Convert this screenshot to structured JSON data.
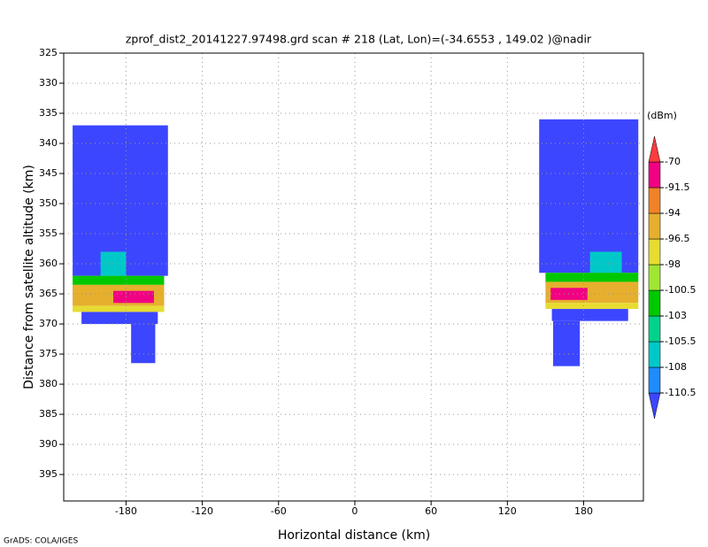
{
  "chart_data": {
    "type": "heatmap",
    "title": "zprof_dist2_20141227.97498.grd  scan # 218  (Lat, Lon)=(-34.6553 , 149.02 )@nadir",
    "x_label": "Horizontal distance (km)",
    "y_label": "Distance from satellite altitude (km)",
    "footer": "GrADS: COLA/IGES",
    "xlim": [
      -229,
      227
    ],
    "ylim": [
      399.4,
      325
    ],
    "xticks": [
      -180,
      -120,
      -60,
      0,
      60,
      120,
      180
    ],
    "yticks": [
      325,
      330,
      335,
      340,
      345,
      350,
      355,
      360,
      365,
      370,
      375,
      380,
      385,
      390,
      395
    ],
    "grid": true,
    "colorbar": {
      "unit": "(dBm)",
      "levels": [
        -110.5,
        -108,
        -105.5,
        -103,
        -100.5,
        -98,
        -96.5,
        -94,
        -91.5,
        -70
      ],
      "colors": [
        "#3c46ff",
        "#1e8cff",
        "#00c8c8",
        "#00d28c",
        "#00c800",
        "#a0e632",
        "#e6dc32",
        "#e6af2d",
        "#f08228",
        "#f00082",
        "#fa3c3c"
      ]
    },
    "cells": [
      {
        "x": [
          -222,
          -147
        ],
        "y": [
          337,
          362
        ],
        "value": -112
      },
      {
        "x": [
          -200,
          -180
        ],
        "y": [
          358,
          362
        ],
        "value": -107
      },
      {
        "x": [
          -222,
          -150
        ],
        "y": [
          362,
          363.5
        ],
        "value": -102
      },
      {
        "x": [
          -222,
          -150
        ],
        "y": [
          363.5,
          367
        ],
        "value": -95
      },
      {
        "x": [
          -190,
          -158
        ],
        "y": [
          364.5,
          366.5
        ],
        "value": -90
      },
      {
        "x": [
          -222,
          -150
        ],
        "y": [
          367,
          368
        ],
        "value": -97
      },
      {
        "x": [
          -215,
          -155
        ],
        "y": [
          368,
          370
        ],
        "value": -112
      },
      {
        "x": [
          -176,
          -157
        ],
        "y": [
          370,
          376.5
        ],
        "value": -112
      },
      {
        "x": [
          145,
          223
        ],
        "y": [
          336,
          361.5
        ],
        "value": -112
      },
      {
        "x": [
          185,
          210
        ],
        "y": [
          358,
          361.5
        ],
        "value": -107
      },
      {
        "x": [
          150,
          223
        ],
        "y": [
          361.5,
          363
        ],
        "value": -102
      },
      {
        "x": [
          150,
          223
        ],
        "y": [
          363,
          366.5
        ],
        "value": -95
      },
      {
        "x": [
          154,
          183
        ],
        "y": [
          364,
          366
        ],
        "value": -90
      },
      {
        "x": [
          150,
          223
        ],
        "y": [
          366.5,
          367.5
        ],
        "value": -97
      },
      {
        "x": [
          155,
          215
        ],
        "y": [
          367.5,
          369.5
        ],
        "value": -112
      },
      {
        "x": [
          156,
          177
        ],
        "y": [
          369.5,
          377
        ],
        "value": -112
      }
    ]
  }
}
